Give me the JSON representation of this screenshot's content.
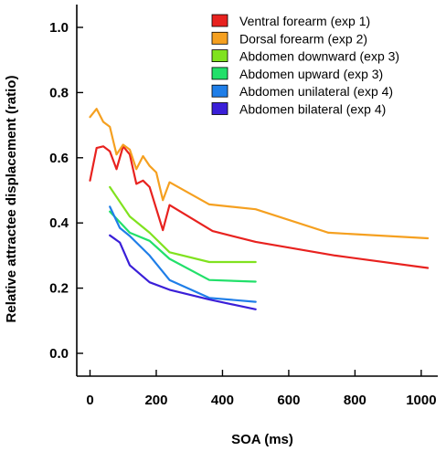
{
  "chart_data": {
    "type": "line",
    "xlabel": "SOA (ms)",
    "ylabel": "Relative attractee displacement (ratio)",
    "xlim": [
      -40,
      1050
    ],
    "ylim": [
      -0.07,
      1.07
    ],
    "xticks": [
      0,
      200,
      400,
      600,
      800,
      1000
    ],
    "xtick_labels": [
      "0",
      "200",
      "400",
      "600",
      "800",
      "1000"
    ],
    "yticks": [
      0.0,
      0.2,
      0.4,
      0.6,
      0.8,
      1.0
    ],
    "ytick_labels": [
      "0.0",
      "0.2",
      "0.4",
      "0.6",
      "0.8",
      "1.0"
    ],
    "grid": false,
    "legend_position": "top-right",
    "series": [
      {
        "name": "Ventral forearm (exp 1)",
        "color": "#e8221f",
        "x": [
          0,
          20,
          40,
          60,
          80,
          100,
          120,
          140,
          160,
          180,
          220,
          240,
          370,
          500,
          740,
          1020
        ],
        "y": [
          0.53,
          0.63,
          0.635,
          0.62,
          0.565,
          0.635,
          0.61,
          0.52,
          0.53,
          0.51,
          0.378,
          0.455,
          0.375,
          0.342,
          0.3,
          0.262
        ]
      },
      {
        "name": "Dorsal forearm (exp 2)",
        "color": "#f5a020",
        "x": [
          0,
          20,
          40,
          60,
          80,
          100,
          120,
          140,
          160,
          180,
          200,
          220,
          240,
          360,
          500,
          720,
          1020
        ],
        "y": [
          0.725,
          0.75,
          0.71,
          0.695,
          0.61,
          0.64,
          0.625,
          0.565,
          0.605,
          0.575,
          0.555,
          0.47,
          0.525,
          0.457,
          0.442,
          0.37,
          0.353
        ]
      },
      {
        "name": "Abdomen downward (exp 3)",
        "color": "#80e21f",
        "x": [
          60,
          120,
          180,
          240,
          360,
          500
        ],
        "y": [
          0.51,
          0.42,
          0.37,
          0.31,
          0.28,
          0.28
        ]
      },
      {
        "name": "Abdomen upward (exp 3)",
        "color": "#22e06a",
        "x": [
          60,
          120,
          180,
          240,
          360,
          500
        ],
        "y": [
          0.435,
          0.37,
          0.345,
          0.29,
          0.225,
          0.22
        ]
      },
      {
        "name": "Abdomen unilateral (exp 4)",
        "color": "#1f7ee8",
        "x": [
          60,
          90,
          120,
          180,
          240,
          360,
          500
        ],
        "y": [
          0.45,
          0.385,
          0.36,
          0.3,
          0.225,
          0.17,
          0.158
        ]
      },
      {
        "name": "Abdomen bilateral (exp 4)",
        "color": "#3a1fd8",
        "x": [
          60,
          90,
          120,
          180,
          240,
          360,
          500
        ],
        "y": [
          0.362,
          0.34,
          0.27,
          0.218,
          0.195,
          0.165,
          0.135
        ]
      }
    ]
  }
}
